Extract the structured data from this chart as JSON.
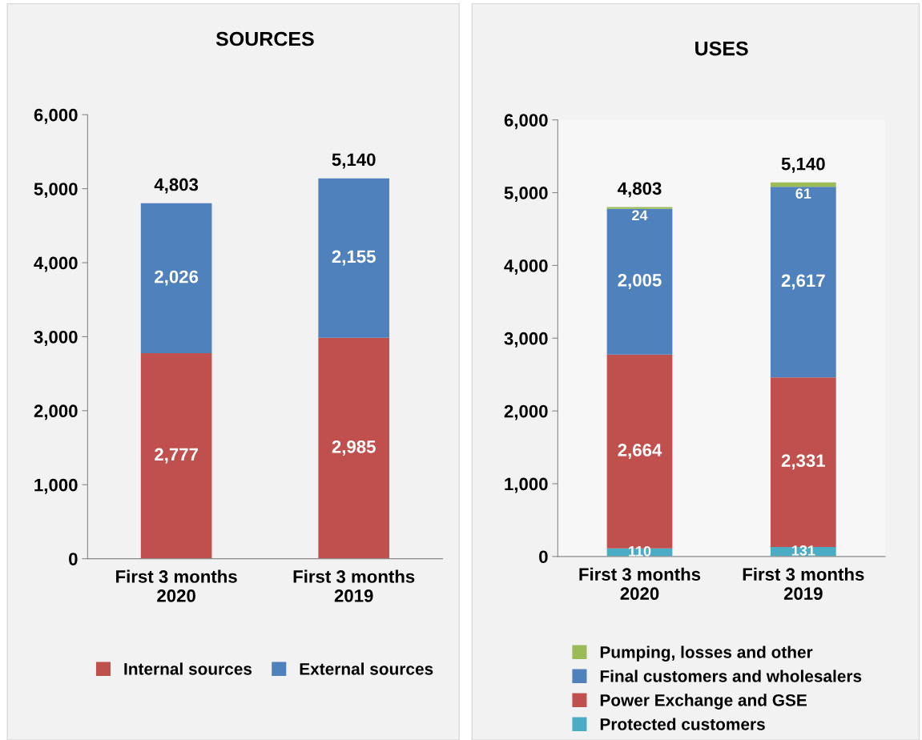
{
  "chart_data": [
    {
      "type": "bar",
      "title": "SOURCES",
      "stacked": true,
      "categories": [
        "First 3 months\n2020",
        "First 3 months\n2019"
      ],
      "ylim": [
        0,
        6000
      ],
      "yticks": [
        {
          "value": 0,
          "label": "0"
        },
        {
          "value": 1000,
          "label": "1,000"
        },
        {
          "value": 2000,
          "label": "2,000"
        },
        {
          "value": 3000,
          "label": "3,000"
        },
        {
          "value": 4000,
          "label": "4,000"
        },
        {
          "value": 5000,
          "label": "5,000"
        },
        {
          "value": 6000,
          "label": "6,000"
        }
      ],
      "grid": false,
      "legend": "bottom",
      "series": [
        {
          "name": "Internal sources",
          "color": "#c0504d",
          "values": [
            2777,
            2985
          ],
          "value_labels": [
            "2,777",
            "2,985"
          ]
        },
        {
          "name": "External sources",
          "color": "#4f81bd",
          "values": [
            2026,
            2155
          ],
          "value_labels": [
            "2,026",
            "2,155"
          ]
        }
      ],
      "totals": [
        "4,803",
        "5,140"
      ]
    },
    {
      "type": "bar",
      "title": "USES",
      "stacked": true,
      "categories": [
        "First 3 months\n2020",
        "First 3 months\n2019"
      ],
      "ylim": [
        0,
        6000
      ],
      "yticks": [
        {
          "value": 0,
          "label": "0"
        },
        {
          "value": 1000,
          "label": "1,000"
        },
        {
          "value": 2000,
          "label": "2,000"
        },
        {
          "value": 3000,
          "label": "3,000"
        },
        {
          "value": 4000,
          "label": "4,000"
        },
        {
          "value": 5000,
          "label": "5,000"
        },
        {
          "value": 6000,
          "label": "6,000"
        }
      ],
      "grid": false,
      "legend": "bottom",
      "series": [
        {
          "name": "Protected customers",
          "color": "#4bacc6",
          "values": [
            110,
            131
          ],
          "value_labels": [
            "110",
            "131"
          ]
        },
        {
          "name": "Power Exchange and GSE",
          "color": "#c0504d",
          "values": [
            2664,
            2331
          ],
          "value_labels": [
            "2,664",
            "2,331"
          ]
        },
        {
          "name": "Final customers and wholesalers",
          "color": "#4f81bd",
          "values": [
            2005,
            2617
          ],
          "value_labels": [
            "2,005",
            "2,617"
          ]
        },
        {
          "name": "Pumping, losses and other",
          "color": "#9bbb59",
          "values": [
            24,
            61
          ],
          "value_labels": [
            "24",
            "61"
          ]
        }
      ],
      "totals": [
        "4,803",
        "5,140"
      ]
    }
  ]
}
